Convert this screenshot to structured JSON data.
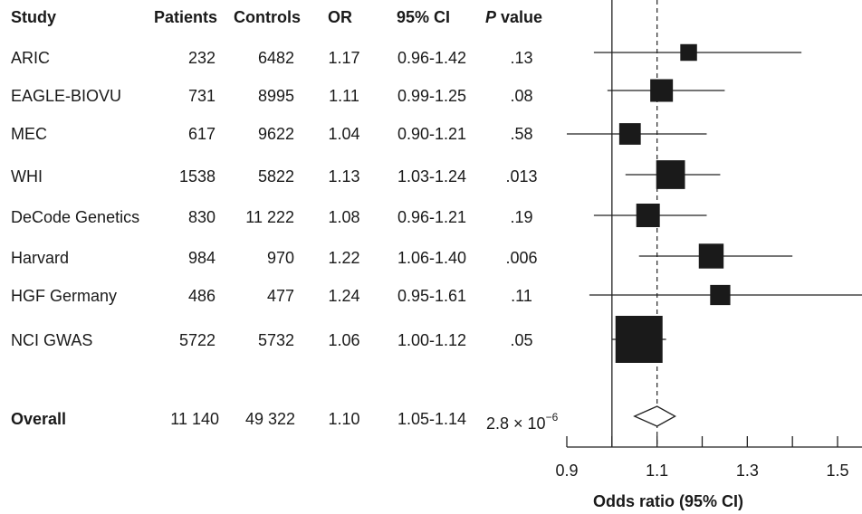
{
  "table": {
    "headers": {
      "study": "Study",
      "patients": "Patients",
      "controls": "Controls",
      "or": "OR",
      "ci": "95% CI",
      "p_italic": "P",
      "p_rest": " value"
    },
    "rows": [
      {
        "study": "ARIC",
        "patients": "232",
        "controls": "6482",
        "or": "1.17",
        "ci": "0.96-1.42",
        "p": ".13"
      },
      {
        "study": "EAGLE-BIOVU",
        "patients": "731",
        "controls": "8995",
        "or": "1.11",
        "ci": "0.99-1.25",
        "p": ".08"
      },
      {
        "study": "MEC",
        "patients": "617",
        "controls": "9622",
        "or": "1.04",
        "ci": "0.90-1.21",
        "p": ".58"
      },
      {
        "study": "WHI",
        "patients": "1538",
        "controls": "5822",
        "or": "1.13",
        "ci": "1.03-1.24",
        "p": ".013"
      },
      {
        "study": "DeCode Genetics",
        "patients": "830",
        "controls": "11 222",
        "or": "1.08",
        "ci": "0.96-1.21",
        "p": ".19"
      },
      {
        "study": "Harvard",
        "patients": "984",
        "controls": "970",
        "or": "1.22",
        "ci": "1.06-1.40",
        "p": ".006"
      },
      {
        "study": "HGF Germany",
        "patients": "486",
        "controls": "477",
        "or": "1.24",
        "ci": "0.95-1.61",
        "p": ".11"
      },
      {
        "study": "NCI GWAS",
        "patients": "5722",
        "controls": "5732",
        "or": "1.06",
        "ci": "1.00-1.12",
        "p": ".05"
      }
    ],
    "overall": {
      "study": "Overall",
      "patients": "11 140",
      "controls": "49 322",
      "or": "1.10",
      "ci": "1.05-1.14",
      "p_base": "2.8 × 10",
      "p_exp": "−6"
    }
  },
  "chart_data": {
    "type": "scatter",
    "subtype": "forest-plot",
    "xlabel": "Odds ratio (95% CI)",
    "xlim": [
      0.9,
      1.6
    ],
    "xticks": [
      0.9,
      1.1,
      1.3,
      1.5
    ],
    "xtick_labels": [
      "0.9",
      "1.1",
      "1.3",
      "1.5"
    ],
    "reference_line": 1.0,
    "pooled_line": 1.1,
    "studies": [
      {
        "name": "ARIC",
        "or": 1.17,
        "lower": 0.96,
        "upper": 1.42,
        "weight": 232
      },
      {
        "name": "EAGLE-BIOVU",
        "or": 1.11,
        "lower": 0.99,
        "upper": 1.25,
        "weight": 731
      },
      {
        "name": "MEC",
        "or": 1.04,
        "lower": 0.9,
        "upper": 1.21,
        "weight": 617
      },
      {
        "name": "WHI",
        "or": 1.13,
        "lower": 1.03,
        "upper": 1.24,
        "weight": 1538
      },
      {
        "name": "DeCode Genetics",
        "or": 1.08,
        "lower": 0.96,
        "upper": 1.21,
        "weight": 830
      },
      {
        "name": "Harvard",
        "or": 1.22,
        "lower": 1.06,
        "upper": 1.4,
        "weight": 984
      },
      {
        "name": "HGF Germany",
        "or": 1.24,
        "lower": 0.95,
        "upper": 1.61,
        "weight": 486
      },
      {
        "name": "NCI GWAS",
        "or": 1.06,
        "lower": 1.0,
        "upper": 1.12,
        "weight": 5722
      }
    ],
    "overall": {
      "name": "Overall",
      "or": 1.1,
      "lower": 1.05,
      "upper": 1.14
    }
  }
}
